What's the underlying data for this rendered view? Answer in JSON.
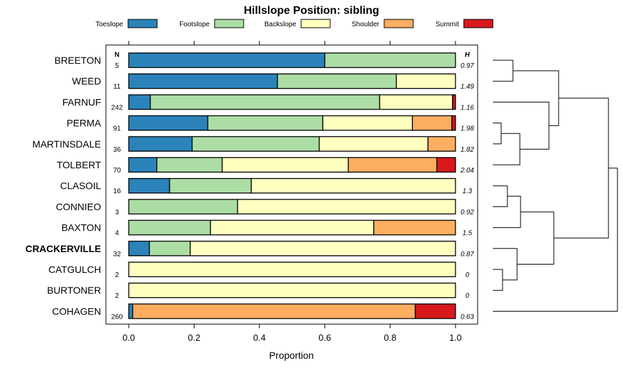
{
  "chart_data": {
    "type": "bar",
    "title": "Hillslope Position: sibling",
    "xlabel": "Proportion",
    "ylabel": "",
    "xlim": [
      0,
      1
    ],
    "x_ticks": [
      "0.0",
      "0.2",
      "0.4",
      "0.6",
      "0.8",
      "1.0"
    ],
    "x_tick_values": [
      0,
      0.2,
      0.4,
      0.6,
      0.8,
      1.0
    ],
    "stacked": true,
    "grid": false,
    "legend_position": "top",
    "n_header": "N",
    "h_header": "H",
    "series": [
      {
        "name": "Toeslope",
        "color": "#2b83ba"
      },
      {
        "name": "Footslope",
        "color": "#abdda4"
      },
      {
        "name": "Backslope",
        "color": "#ffffbf"
      },
      {
        "name": "Shoulder",
        "color": "#fdae61"
      },
      {
        "name": "Summit",
        "color": "#d7191c"
      }
    ],
    "categories": [
      {
        "label": "BREETON",
        "n": "5",
        "h": "0.97",
        "bold": false,
        "values": [
          0.6,
          0.4,
          0,
          0,
          0
        ]
      },
      {
        "label": "WEED",
        "n": "11",
        "h": "1.49",
        "bold": false,
        "values": [
          0.455,
          0.364,
          0.181,
          0,
          0
        ]
      },
      {
        "label": "FARNUF",
        "n": "242",
        "h": "1.16",
        "bold": false,
        "values": [
          0.066,
          0.702,
          0.223,
          0,
          0.009
        ]
      },
      {
        "label": "PERMA",
        "n": "91",
        "h": "1.98",
        "bold": false,
        "values": [
          0.242,
          0.352,
          0.274,
          0.121,
          0.011
        ]
      },
      {
        "label": "MARTINSDALE",
        "n": "36",
        "h": "1.82",
        "bold": false,
        "values": [
          0.194,
          0.389,
          0.333,
          0.084,
          0
        ]
      },
      {
        "label": "TOLBERT",
        "n": "70",
        "h": "2.04",
        "bold": false,
        "values": [
          0.086,
          0.2,
          0.386,
          0.271,
          0.057
        ]
      },
      {
        "label": "CLASOIL",
        "n": "16",
        "h": "1.3",
        "bold": false,
        "values": [
          0.125,
          0.25,
          0.625,
          0,
          0
        ]
      },
      {
        "label": "CONNIEO",
        "n": "3",
        "h": "0.92",
        "bold": false,
        "values": [
          0,
          0.333,
          0.667,
          0,
          0
        ]
      },
      {
        "label": "BAXTON",
        "n": "4",
        "h": "1.5",
        "bold": false,
        "values": [
          0,
          0.25,
          0.5,
          0.25,
          0
        ]
      },
      {
        "label": "CRACKERVILLE",
        "n": "32",
        "h": "0.87",
        "bold": true,
        "values": [
          0.063,
          0.125,
          0.812,
          0,
          0
        ]
      },
      {
        "label": "CATGULCH",
        "n": "2",
        "h": "0",
        "bold": false,
        "values": [
          0,
          0,
          1.0,
          0,
          0
        ]
      },
      {
        "label": "BURTONER",
        "n": "2",
        "h": "0",
        "bold": false,
        "values": [
          0,
          0,
          1.0,
          0,
          0
        ]
      },
      {
        "label": "COHAGEN",
        "n": "260",
        "h": "0.63",
        "bold": false,
        "values": [
          0.012,
          0,
          0,
          0.865,
          0.123
        ]
      }
    ]
  }
}
